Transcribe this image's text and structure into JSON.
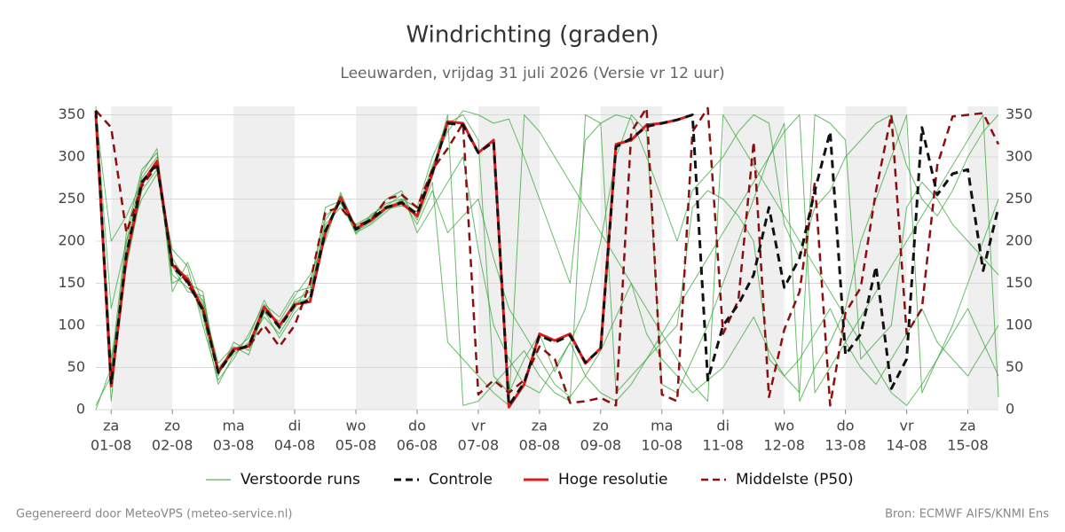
{
  "chart_data": {
    "type": "line",
    "title": "Windrichting (graden)",
    "subtitle": "Leeuwarden, vrijdag 31 juli 2026 (Versie vr 12 uur)",
    "footer_left": "Gegenereerd door MeteoVPS (meteo-service.nl)",
    "footer_right": "Bron: ECMWF AIFS/KNMI Ens",
    "xlim": [
      -0.25,
      14.5
    ],
    "ylim": [
      0,
      360
    ],
    "yticks": [
      0,
      50,
      100,
      150,
      200,
      250,
      300,
      350
    ],
    "grid": true,
    "xticks": [
      {
        "value": 0,
        "label": "za",
        "date": "01-08"
      },
      {
        "value": 1,
        "label": "zo",
        "date": "02-08"
      },
      {
        "value": 2,
        "label": "ma",
        "date": "03-08"
      },
      {
        "value": 3,
        "label": "di",
        "date": "04-08"
      },
      {
        "value": 4,
        "label": "wo",
        "date": "05-08"
      },
      {
        "value": 5,
        "label": "do",
        "date": "06-08"
      },
      {
        "value": 6,
        "label": "vr",
        "date": "07-08"
      },
      {
        "value": 7,
        "label": "za",
        "date": "08-08"
      },
      {
        "value": 8,
        "label": "zo",
        "date": "09-08"
      },
      {
        "value": 9,
        "label": "ma",
        "date": "10-08"
      },
      {
        "value": 10,
        "label": "di",
        "date": "11-08"
      },
      {
        "value": 11,
        "label": "wo",
        "date": "12-08"
      },
      {
        "value": 12,
        "label": "do",
        "date": "13-08"
      },
      {
        "value": 13,
        "label": "vr",
        "date": "14-08"
      },
      {
        "value": 14,
        "label": "za",
        "date": "15-08"
      }
    ],
    "x": [
      -0.25,
      0,
      0.25,
      0.5,
      0.75,
      1,
      1.25,
      1.5,
      1.75,
      2,
      2.25,
      2.5,
      2.75,
      3,
      3.25,
      3.5,
      3.75,
      4,
      4.25,
      4.5,
      4.75,
      5,
      5.25,
      5.5,
      5.75,
      6,
      6.25,
      6.5,
      6.75,
      7,
      7.25,
      7.5,
      7.75,
      8,
      8.25,
      8.5,
      8.75,
      9,
      9.25,
      9.5,
      9.75,
      10,
      10.25,
      10.5,
      10.75,
      11,
      11.25,
      11.5,
      11.75,
      12,
      12.25,
      12.5,
      12.75,
      13,
      13.25,
      13.5,
      13.75,
      14,
      14.25,
      14.5
    ],
    "perturbed": {
      "name": "Verstoorde runs",
      "color": "#2ca02c",
      "runs": [
        [
          5,
          40,
          200,
          280,
          310,
          150,
          160,
          110,
          30,
          65,
          80,
          110,
          90,
          120,
          150,
          230,
          245,
          210,
          220,
          235,
          250,
          240,
          300,
          340,
          350,
          320,
          40,
          20,
          60,
          90,
          45,
          80,
          120,
          200,
          300,
          350,
          330,
          30,
          20,
          60,
          100,
          150,
          200,
          250,
          300,
          340,
          10,
          50,
          80,
          120,
          200,
          250,
          300,
          350,
          20,
          60,
          100,
          150,
          200,
          250
        ],
        [
          360,
          60,
          170,
          260,
          285,
          160,
          145,
          130,
          50,
          70,
          85,
          130,
          95,
          130,
          140,
          220,
          240,
          220,
          230,
          245,
          250,
          220,
          260,
          210,
          230,
          250,
          180,
          120,
          90,
          60,
          30,
          15,
          40,
          70,
          110,
          150,
          90,
          60,
          40,
          20,
          35,
          50,
          80,
          110,
          70,
          40,
          60,
          90,
          120,
          80,
          50,
          30,
          60,
          90,
          120,
          80,
          60,
          40,
          70,
          100
        ],
        [
          340,
          10,
          190,
          275,
          300,
          180,
          150,
          140,
          40,
          80,
          70,
          115,
          105,
          135,
          160,
          200,
          255,
          212,
          222,
          238,
          242,
          235,
          290,
          330,
          355,
          350,
          340,
          345,
          300,
          250,
          200,
          150,
          320,
          340,
          350,
          345,
          300,
          250,
          200,
          260,
          280,
          300,
          330,
          350,
          340,
          220,
          180,
          240,
          260,
          300,
          320,
          340,
          350,
          290,
          250,
          230,
          260,
          300,
          330,
          350
        ],
        [
          355,
          120,
          200,
          250,
          280,
          190,
          170,
          100,
          35,
          60,
          90,
          125,
          110,
          140,
          145,
          240,
          248,
          218,
          228,
          250,
          260,
          210,
          240,
          270,
          300,
          190,
          100,
          60,
          30,
          20,
          50,
          80,
          40,
          20,
          10,
          30,
          60,
          90,
          120,
          150,
          180,
          210,
          240,
          270,
          300,
          330,
          350,
          20,
          50,
          80,
          110,
          140,
          170,
          200,
          230,
          260,
          290,
          320,
          350,
          15
        ],
        [
          0,
          50,
          210,
          285,
          305,
          140,
          175,
          125,
          55,
          75,
          65,
          118,
          85,
          115,
          135,
          225,
          250,
          208,
          232,
          242,
          255,
          225,
          270,
          80,
          60,
          40,
          20,
          5,
          350,
          330,
          300,
          270,
          240,
          210,
          180,
          150,
          120,
          90,
          60,
          30,
          10,
          350,
          320,
          290,
          260,
          230,
          200,
          170,
          140,
          110,
          80,
          50,
          20,
          5,
          30,
          60,
          90,
          120,
          80,
          40
        ],
        [
          350,
          200,
          230,
          270,
          290,
          170,
          140,
          135,
          42,
          68,
          78,
          120,
          98,
          128,
          132,
          205,
          258,
          216,
          224,
          241,
          248,
          228,
          285,
          350,
          5,
          10,
          30,
          50,
          70,
          40,
          20,
          10,
          350,
          340,
          20,
          40,
          60,
          80,
          100,
          240,
          260,
          250,
          230,
          200,
          60,
          40,
          20,
          350,
          340,
          320,
          60,
          80,
          100,
          240,
          270,
          250,
          220,
          200,
          180,
          160
        ]
      ]
    },
    "series": [
      {
        "name": "Controle",
        "color": "#111111",
        "dash": true,
        "width": 3,
        "values": [
          355,
          30,
          185,
          270,
          292,
          170,
          152,
          118,
          44,
          70,
          76,
          120,
          98,
          124,
          130,
          212,
          250,
          214,
          226,
          240,
          246,
          232,
          282,
          340,
          338,
          305,
          318,
          5,
          32,
          88,
          80,
          88,
          56,
          72,
          312,
          322,
          336,
          340,
          344,
          350,
          35,
          100,
          125,
          160,
          240,
          145,
          180,
          260,
          330,
          65,
          90,
          170,
          25,
          60,
          335,
          255,
          280,
          285,
          165,
          240
        ]
      },
      {
        "name": "Hoge resolutie",
        "color": "#e01b1b",
        "dash": false,
        "width": 3,
        "values": [
          350,
          28,
          180,
          268,
          295,
          172,
          155,
          120,
          45,
          72,
          75,
          122,
          100,
          125,
          128,
          210,
          252,
          215,
          225,
          240,
          245,
          230,
          280,
          342,
          340,
          305,
          320,
          3,
          30,
          90,
          82,
          90,
          55,
          73,
          315,
          320,
          338,
          340,
          344,
          350,
          null,
          null,
          null,
          null,
          null,
          null,
          null,
          null,
          null,
          null,
          null,
          null,
          null,
          null,
          null,
          null,
          null,
          null,
          null,
          null
        ]
      },
      {
        "name": "Middelste (P50)",
        "color": "#8b0f0f",
        "dash": true,
        "width": 2.5,
        "values": [
          355,
          335,
          210,
          265,
          290,
          175,
          150,
          118,
          45,
          70,
          75,
          100,
          75,
          100,
          150,
          235,
          240,
          218,
          225,
          250,
          255,
          240,
          285,
          310,
          340,
          18,
          35,
          20,
          35,
          75,
          60,
          8,
          10,
          14,
          5,
          330,
          358,
          18,
          10,
          330,
          358,
          90,
          130,
          318,
          15,
          95,
          140,
          270,
          5,
          115,
          145,
          260,
          350,
          90,
          120,
          290,
          348,
          350,
          352,
          315
        ]
      }
    ]
  }
}
